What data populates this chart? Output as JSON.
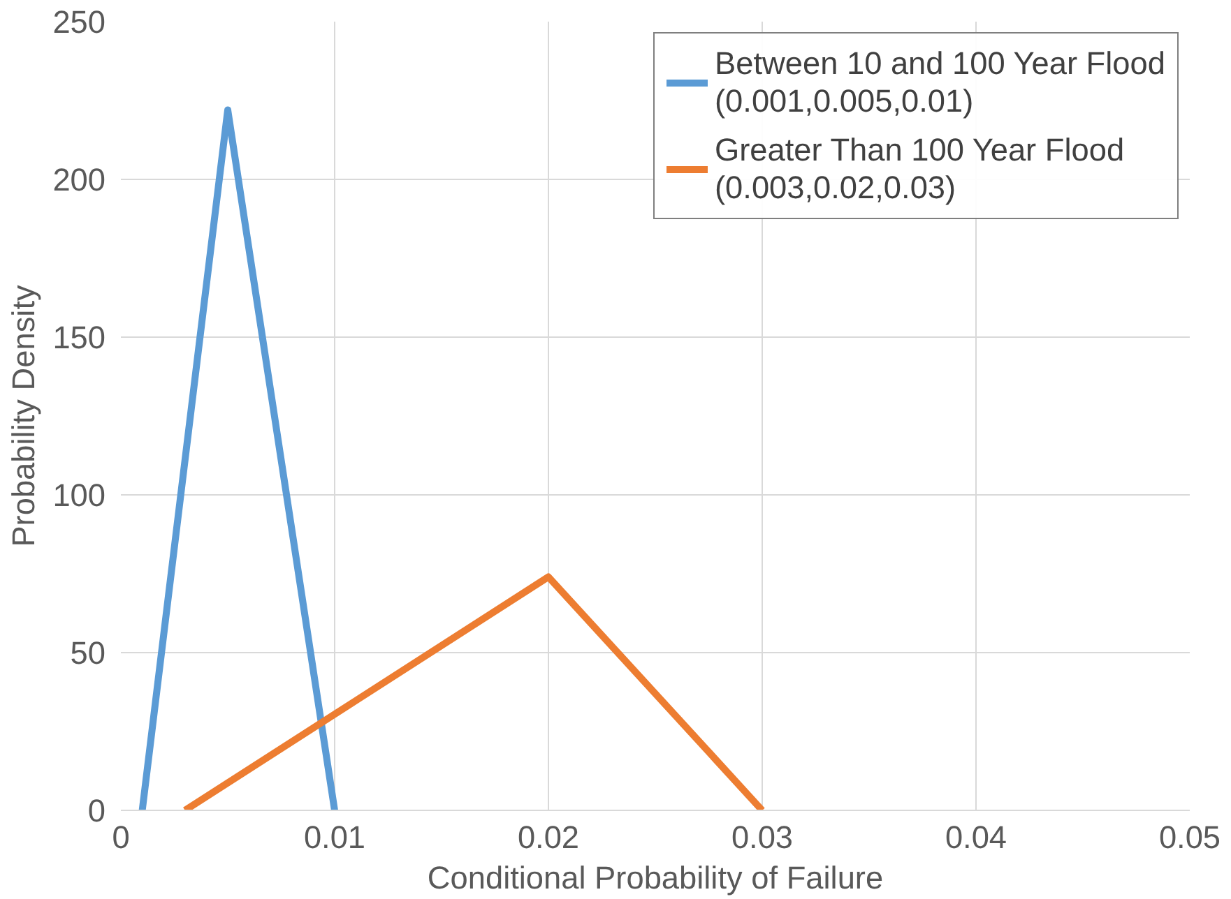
{
  "chart_data": {
    "type": "line",
    "xlabel": "Conditional Probability of Failure",
    "ylabel": "Probability Density",
    "series": [
      {
        "name": "Between 10 and 100 Year Flood\n(0.001,0.005,0.01)",
        "color": "#5b9bd5",
        "x": [
          0.001,
          0.005,
          0.01
        ],
        "values": [
          0,
          222,
          0
        ]
      },
      {
        "name": "Greater Than 100 Year Flood\n(0.003,0.02,0.03)",
        "color": "#ed7d31",
        "x": [
          0.003,
          0.02,
          0.03
        ],
        "values": [
          0,
          74,
          0
        ]
      }
    ],
    "xlim": [
      0,
      0.05
    ],
    "xticks": [
      0,
      0.01,
      0.02,
      0.03,
      0.04,
      0.05
    ],
    "ylim": [
      0,
      250
    ],
    "yticks": [
      0,
      50,
      100,
      150,
      200,
      250
    ],
    "grid": true,
    "legend": "top right",
    "marker": "none",
    "line_style": "solid"
  }
}
